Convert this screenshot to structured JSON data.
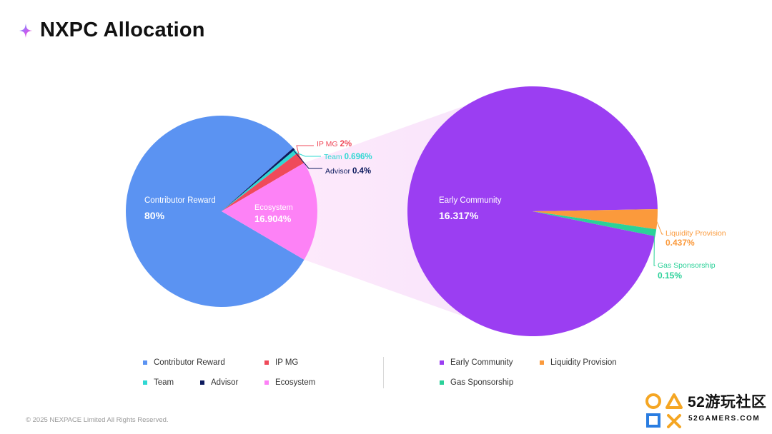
{
  "header": {
    "title": "NXPC Allocation"
  },
  "chart_data": [
    {
      "type": "pie",
      "title": "",
      "slices": [
        {
          "label": "Contributor Reward",
          "value": 80,
          "value_label": "80%",
          "color": "#5b93f2"
        },
        {
          "label": "IP MG",
          "value": 2,
          "value_label": "2%",
          "color": "#ef4a5a"
        },
        {
          "label": "Team",
          "value": 0.696,
          "value_label": "0.696%",
          "color": "#2fd8d3"
        },
        {
          "label": "Advisor",
          "value": 0.4,
          "value_label": "0.4%",
          "color": "#0d1b5e"
        },
        {
          "label": "Ecosystem",
          "value": 16.904,
          "value_label": "16.904%",
          "color": "#fd82f6"
        }
      ]
    },
    {
      "type": "pie",
      "title": "",
      "slices": [
        {
          "label": "Early Community",
          "value": 16.317,
          "value_label": "16.317%",
          "color": "#9b3ef2"
        },
        {
          "label": "Liquidity Provision",
          "value": 0.437,
          "value_label": "0.437%",
          "color": "#fb9a3c"
        },
        {
          "label": "Gas Sponsorship",
          "value": 0.15,
          "value_label": "0.15%",
          "color": "#2bd199"
        }
      ]
    }
  ],
  "legend": {
    "left": [
      {
        "label": "Contributor Reward",
        "color": "#5b93f2"
      },
      {
        "label": "IP MG",
        "color": "#ef4a5a"
      },
      {
        "label": "Team",
        "color": "#2fd8d3"
      },
      {
        "label": "Advisor",
        "color": "#0d1b5e"
      },
      {
        "label": "Ecosystem",
        "color": "#fd82f6"
      }
    ],
    "right": [
      {
        "label": "Early Community",
        "color": "#9b3ef2"
      },
      {
        "label": "Liquidity Provision",
        "color": "#fb9a3c"
      },
      {
        "label": "Gas Sponsorship",
        "color": "#2bd199"
      }
    ]
  },
  "footer": {
    "copyright": "© 2025 NEXPACE Limited All Rights Reserved."
  },
  "watermark": {
    "brand": "52游玩社区",
    "domain": "52GAMERS.COM"
  }
}
